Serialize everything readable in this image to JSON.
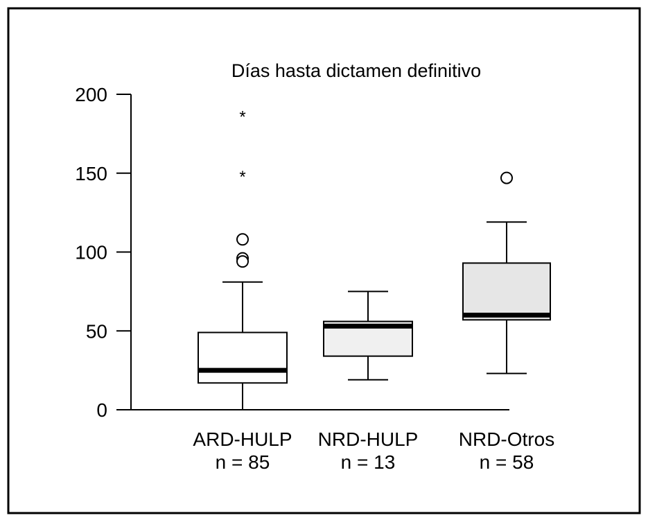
{
  "chart_data": {
    "type": "boxplot",
    "title": "Días hasta dictamen definitivo",
    "xlabel": "",
    "ylabel": "",
    "ylim": [
      0,
      200
    ],
    "yticks": [
      0,
      50,
      100,
      150,
      200
    ],
    "grid": false,
    "legend": "none",
    "categories": [
      {
        "label": "ARD-HULP",
        "n_label": "n = 85",
        "min": 0,
        "q1": 17,
        "median": 25,
        "q3": 49,
        "max": 81,
        "outliers": [
          108,
          96,
          94
        ],
        "extremes": [
          188,
          150
        ],
        "fill": "#ffffff"
      },
      {
        "label": "NRD-HULP",
        "n_label": "n = 13",
        "min": 19,
        "q1": 34,
        "median": 53,
        "q3": 56,
        "max": 75,
        "outliers": [],
        "extremes": [],
        "fill": "#f0f0f0"
      },
      {
        "label": "NRD-Otros",
        "n_label": "n = 58",
        "min": 23,
        "q1": 57,
        "median": 60,
        "q3": 93,
        "max": 119,
        "outliers": [
          147
        ],
        "extremes": [],
        "fill": "#e6e6e6"
      }
    ],
    "colors": {
      "stroke": "#000000",
      "background": "#ffffff"
    }
  }
}
